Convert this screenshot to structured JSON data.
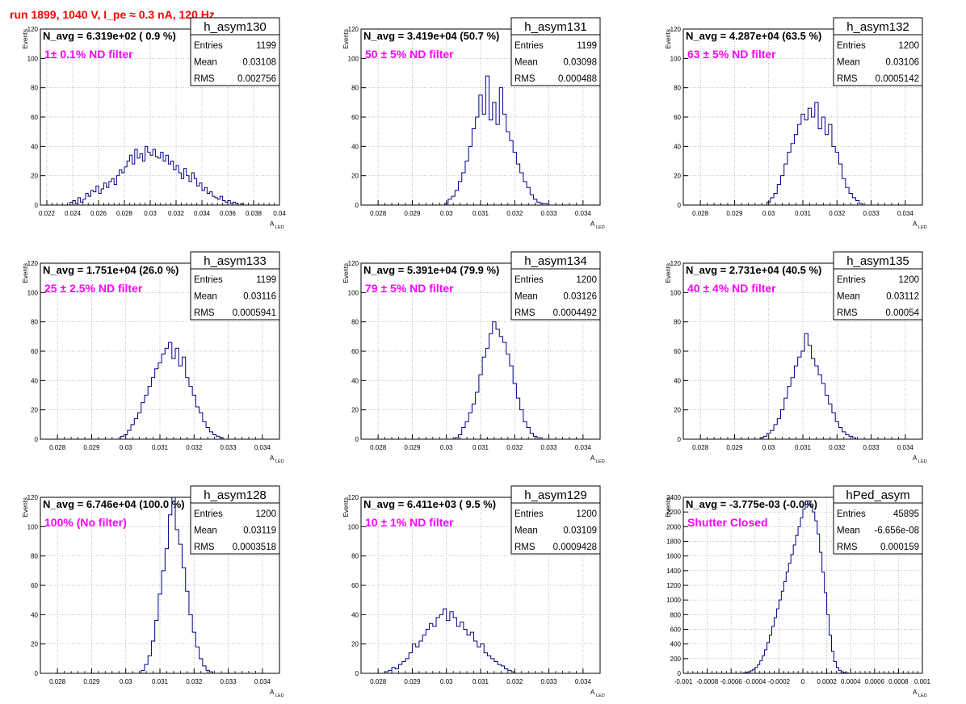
{
  "run_title": "run 1899,  1040 V, I_pe ≈ 0.3 nA, 120 Hz",
  "colors": {
    "title": "#ff0000",
    "annotation": "#ff00ff",
    "histogram": "#00008b",
    "grid": "#a0a0a0",
    "frame": "#000000"
  },
  "chart_data": [
    {
      "type": "histogram",
      "name": "h_asym130",
      "ylabel": "Events",
      "xlabel": "A",
      "xlabel_sub": "LED",
      "xlim": [
        0.0215,
        0.04
      ],
      "ylim": [
        0,
        120
      ],
      "xticks": [
        "0.022",
        "0.024",
        "0.026",
        "0.028",
        "0.03",
        "0.032",
        "0.034",
        "0.036",
        "0.038",
        "0.04"
      ],
      "xtick_values": [
        0.022,
        0.024,
        0.026,
        0.028,
        0.03,
        0.032,
        0.034,
        0.036,
        0.038,
        0.04
      ],
      "yticks": [
        "0",
        "20",
        "40",
        "60",
        "80",
        "100",
        "120"
      ],
      "ytick_values": [
        0,
        20,
        40,
        60,
        80,
        100,
        120
      ],
      "navg": "N_avg = 6.319e+02 ( 0.9 %)",
      "annotation": "1± 0.1% ND filter",
      "stats": {
        "entries": "1199",
        "mean": "0.03108",
        "rms": "0.002756"
      },
      "bins": {
        "start": 0.0238,
        "width": 0.0002,
        "counts": [
          2,
          3,
          1,
          5,
          2,
          4,
          8,
          6,
          10,
          9,
          13,
          8,
          11,
          15,
          12,
          16,
          18,
          14,
          20,
          24,
          22,
          26,
          30,
          34,
          28,
          38,
          32,
          35,
          30,
          40,
          36,
          34,
          38,
          33,
          32,
          36,
          30,
          34,
          28,
          30,
          24,
          27,
          22,
          18,
          25,
          20,
          16,
          22,
          18,
          13,
          15,
          10,
          12,
          8,
          9,
          6,
          5,
          4,
          6,
          3,
          2,
          3,
          1,
          2,
          1,
          0,
          1
        ]
      },
      "mean_value": 0.03108,
      "rms_value": 0.002756
    },
    {
      "type": "histogram",
      "name": "h_asym131",
      "ylabel": "Events",
      "xlabel": "A",
      "xlabel_sub": "LED",
      "xlim": [
        0.0275,
        0.0345
      ],
      "ylim": [
        0,
        120
      ],
      "xticks": [
        "0.028",
        "0.029",
        "0.03",
        "0.031",
        "0.032",
        "0.033",
        "0.034"
      ],
      "xtick_values": [
        0.028,
        0.029,
        0.03,
        0.031,
        0.032,
        0.033,
        0.034
      ],
      "yticks": [
        "0",
        "20",
        "40",
        "60",
        "80",
        "100",
        "120"
      ],
      "ytick_values": [
        0,
        20,
        40,
        60,
        80,
        100,
        120
      ],
      "navg": "N_avg = 3.419e+04 (50.7 %)",
      "annotation": "50 ± 5% ND filter",
      "stats": {
        "entries": "1199",
        "mean": "0.03098",
        "rms": "0.000488"
      },
      "bins": {
        "start": 0.02995,
        "width": 0.0001,
        "counts": [
          1,
          4,
          6,
          10,
          16,
          22,
          30,
          40,
          52,
          60,
          75,
          62,
          88,
          58,
          70,
          55,
          80,
          62,
          50,
          44,
          36,
          28,
          22,
          16,
          12,
          7,
          4,
          2,
          1,
          1
        ]
      },
      "mean_value": 0.03098,
      "rms_value": 0.000488
    },
    {
      "type": "histogram",
      "name": "h_asym132",
      "ylabel": "Events",
      "xlabel": "A",
      "xlabel_sub": "LED",
      "xlim": [
        0.0275,
        0.0345
      ],
      "ylim": [
        0,
        120
      ],
      "xticks": [
        "0.028",
        "0.029",
        "0.03",
        "0.031",
        "0.032",
        "0.033",
        "0.034"
      ],
      "xtick_values": [
        0.028,
        0.029,
        0.03,
        0.031,
        0.032,
        0.033,
        0.034
      ],
      "yticks": [
        "0",
        "20",
        "40",
        "60",
        "80",
        "100",
        "120"
      ],
      "ytick_values": [
        0,
        20,
        40,
        60,
        80,
        100,
        120
      ],
      "navg": "N_avg = 4.287e+04 (63.5 %)",
      "annotation": "63 ± 5% ND filter",
      "stats": {
        "entries": "1200",
        "mean": "0.03106",
        "rms": "0.0005142"
      },
      "bins": {
        "start": 0.02995,
        "width": 0.0001,
        "counts": [
          2,
          5,
          8,
          14,
          20,
          28,
          36,
          42,
          48,
          55,
          62,
          58,
          66,
          60,
          70,
          52,
          60,
          48,
          55,
          40,
          36,
          28,
          18,
          12,
          8,
          5,
          3,
          1
        ]
      },
      "mean_value": 0.03106,
      "rms_value": 0.0005142
    },
    {
      "type": "histogram",
      "name": "h_asym133",
      "ylabel": "Events",
      "xlabel": "A",
      "xlabel_sub": "LED",
      "xlim": [
        0.0275,
        0.0345
      ],
      "ylim": [
        0,
        120
      ],
      "xticks": [
        "0.028",
        "0.029",
        "0.03",
        "0.031",
        "0.032",
        "0.033",
        "0.034"
      ],
      "xtick_values": [
        0.028,
        0.029,
        0.03,
        0.031,
        0.032,
        0.033,
        0.034
      ],
      "yticks": [
        "0",
        "20",
        "40",
        "60",
        "80",
        "100",
        "120"
      ],
      "ytick_values": [
        0,
        20,
        40,
        60,
        80,
        100,
        120
      ],
      "navg": "N_avg = 1.751e+04 (26.0 %)",
      "annotation": "25 ± 2.5% ND filter",
      "stats": {
        "entries": "1199",
        "mean": "0.03116",
        "rms": "0.0005941"
      },
      "bins": {
        "start": 0.02985,
        "width": 0.0001,
        "counts": [
          2,
          3,
          6,
          10,
          14,
          18,
          25,
          30,
          36,
          42,
          48,
          52,
          58,
          62,
          66,
          55,
          62,
          50,
          56,
          42,
          36,
          30,
          22,
          18,
          12,
          8,
          5,
          3,
          2,
          1
        ]
      },
      "mean_value": 0.03116,
      "rms_value": 0.0005941
    },
    {
      "type": "histogram",
      "name": "h_asym134",
      "ylabel": "Events",
      "xlabel": "A",
      "xlabel_sub": "LED",
      "xlim": [
        0.0275,
        0.0345
      ],
      "ylim": [
        0,
        120
      ],
      "xticks": [
        "0.028",
        "0.029",
        "0.03",
        "0.031",
        "0.032",
        "0.033",
        "0.034"
      ],
      "xtick_values": [
        0.028,
        0.029,
        0.03,
        0.031,
        0.032,
        0.033,
        0.034
      ],
      "yticks": [
        "0",
        "20",
        "40",
        "60",
        "80",
        "100",
        "120"
      ],
      "ytick_values": [
        0,
        20,
        40,
        60,
        80,
        100,
        120
      ],
      "navg": "N_avg = 5.391e+04 (79.9 %)",
      "annotation": "79 ± 5% ND filter",
      "stats": {
        "entries": "1200",
        "mean": "0.03126",
        "rms": "0.0004492"
      },
      "bins": {
        "start": 0.03025,
        "width": 0.0001,
        "counts": [
          1,
          3,
          8,
          12,
          18,
          24,
          32,
          44,
          56,
          62,
          72,
          80,
          75,
          70,
          66,
          58,
          50,
          38,
          28,
          20,
          12,
          8,
          4,
          2,
          1
        ]
      },
      "mean_value": 0.03126,
      "rms_value": 0.0004492
    },
    {
      "type": "histogram",
      "name": "h_asym135",
      "ylabel": "Events",
      "xlabel": "A",
      "xlabel_sub": "LED",
      "xlim": [
        0.0275,
        0.0345
      ],
      "ylim": [
        0,
        120
      ],
      "xticks": [
        "0.028",
        "0.029",
        "0.03",
        "0.031",
        "0.032",
        "0.033",
        "0.034"
      ],
      "xtick_values": [
        0.028,
        0.029,
        0.03,
        0.031,
        0.032,
        0.033,
        0.034
      ],
      "yticks": [
        "0",
        "20",
        "40",
        "60",
        "80",
        "100",
        "120"
      ],
      "ytick_values": [
        0,
        20,
        40,
        60,
        80,
        100,
        120
      ],
      "navg": "N_avg = 2.731e+04 (40.5 %)",
      "annotation": "40 ± 4% ND filter",
      "stats": {
        "entries": "1200",
        "mean": "0.03112",
        "rms": "0.00054"
      },
      "bins": {
        "start": 0.02975,
        "width": 0.0001,
        "counts": [
          1,
          2,
          4,
          6,
          10,
          14,
          20,
          28,
          36,
          42,
          50,
          56,
          60,
          72,
          64,
          55,
          50,
          44,
          38,
          30,
          24,
          18,
          12,
          8,
          5,
          3,
          2,
          1
        ]
      },
      "mean_value": 0.03112,
      "rms_value": 0.00054
    },
    {
      "type": "histogram",
      "name": "h_asym128",
      "ylabel": "Events",
      "xlabel": "A",
      "xlabel_sub": "LED",
      "xlim": [
        0.0275,
        0.0345
      ],
      "ylim": [
        0,
        120
      ],
      "xticks": [
        "0.028",
        "0.029",
        "0.03",
        "0.031",
        "0.032",
        "0.033",
        "0.034"
      ],
      "xtick_values": [
        0.028,
        0.029,
        0.03,
        0.031,
        0.032,
        0.033,
        0.034
      ],
      "yticks": [
        "0",
        "20",
        "40",
        "60",
        "80",
        "100",
        "120"
      ],
      "ytick_values": [
        0,
        20,
        40,
        60,
        80,
        100,
        120
      ],
      "navg": "N_avg = 6.746e+04 (100.0 %)",
      "annotation": "100% (No filter)",
      "stats": {
        "entries": "1200",
        "mean": "0.03119",
        "rms": "0.0003518"
      },
      "bins": {
        "start": 0.03045,
        "width": 0.0001,
        "counts": [
          2,
          6,
          12,
          22,
          36,
          54,
          70,
          85,
          108,
          120,
          98,
          88,
          72,
          56,
          40,
          28,
          18,
          10,
          5,
          2,
          1
        ]
      },
      "mean_value": 0.03119,
      "rms_value": 0.0003518
    },
    {
      "type": "histogram",
      "name": "h_asym129",
      "ylabel": "Events",
      "xlabel": "A",
      "xlabel_sub": "LED",
      "xlim": [
        0.0275,
        0.0345
      ],
      "ylim": [
        0,
        120
      ],
      "xticks": [
        "0.028",
        "0.029",
        "0.03",
        "0.031",
        "0.032",
        "0.033",
        "0.034"
      ],
      "xtick_values": [
        0.028,
        0.029,
        0.03,
        0.031,
        0.032,
        0.033,
        0.034
      ],
      "yticks": [
        "0",
        "20",
        "40",
        "60",
        "80",
        "100",
        "120"
      ],
      "ytick_values": [
        0,
        20,
        40,
        60,
        80,
        100,
        120
      ],
      "navg": "N_avg = 6.411e+03 ( 9.5 %)",
      "annotation": "10 ± 1% ND filter",
      "stats": {
        "entries": "1200",
        "mean": "0.03109",
        "rms": "0.0009428"
      },
      "bins": {
        "start": 0.0282,
        "width": 0.0001,
        "counts": [
          1,
          2,
          4,
          3,
          6,
          8,
          10,
          14,
          20,
          18,
          22,
          26,
          30,
          34,
          32,
          38,
          40,
          44,
          36,
          42,
          38,
          32,
          35,
          30,
          26,
          28,
          22,
          18,
          20,
          14,
          12,
          10,
          8,
          6,
          5,
          3,
          2,
          1
        ]
      },
      "mean_value": 0.03109,
      "rms_value": 0.0009428
    },
    {
      "type": "histogram",
      "name": "hPed_asym",
      "ylabel": "Events",
      "xlabel": "A",
      "xlabel_sub": "LED",
      "xlim": [
        -0.001,
        0.001
      ],
      "ylim": [
        0,
        2400
      ],
      "xticks": [
        "-0.001",
        "-0.0008",
        "-0.0006",
        "-0.0004",
        "-0.0002",
        "0",
        "0.0002",
        "0.0004",
        "0.0006",
        "0.0008",
        "0.001"
      ],
      "xtick_values": [
        -0.001,
        -0.0008,
        -0.0006,
        -0.0004,
        -0.0002,
        0,
        0.0002,
        0.0004,
        0.0006,
        0.0008,
        0.001
      ],
      "yticks": [
        "0",
        "200",
        "400",
        "600",
        "800",
        "1000",
        "1200",
        "1400",
        "1600",
        "1800",
        "2000",
        "2200",
        "2400"
      ],
      "ytick_values": [
        0,
        200,
        400,
        600,
        800,
        1000,
        1200,
        1400,
        1600,
        1800,
        2000,
        2200,
        2400
      ],
      "navg": "N_avg = -3.775e-03 (-0.0%)",
      "annotation": "Shutter Closed",
      "stats": {
        "entries": "45895",
        "mean": "-6.656e-08",
        "rms": "0.000159"
      },
      "bins": {
        "start": -0.0005,
        "width": 2e-05,
        "counts": [
          5,
          10,
          20,
          35,
          55,
          80,
          120,
          170,
          240,
          320,
          420,
          520,
          640,
          760,
          880,
          1000,
          1120,
          1250,
          1380,
          1500,
          1620,
          1750,
          1880,
          2000,
          2120,
          2240,
          2300,
          2350,
          2280,
          2200,
          2080,
          1900,
          1650,
          1380,
          1100,
          800,
          520,
          300,
          160,
          80,
          40,
          20,
          10,
          5
        ]
      },
      "mean_value": 0.0,
      "rms_value": 0.000159
    }
  ]
}
